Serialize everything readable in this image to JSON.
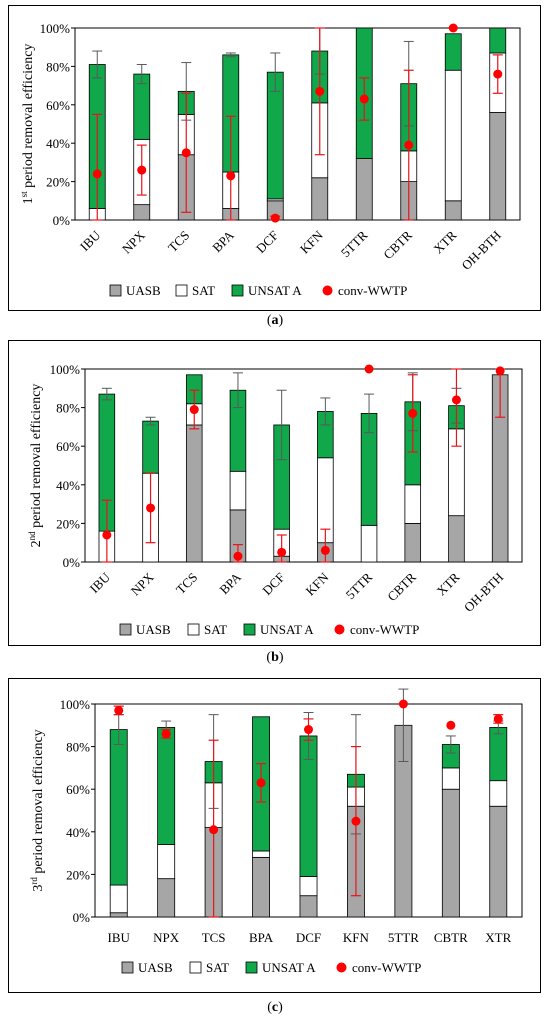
{
  "colors": {
    "uasb": "#a6a6a6",
    "sat": "#ffffff",
    "unsat": "#10a84a",
    "conv": "#ff0000",
    "error_bar": "#595959",
    "conv_error_bar": "#e8141b"
  },
  "chart_data": [
    {
      "type": "bar",
      "panel_label": "a",
      "ylabel_prefix": "1",
      "ylabel_sup": "st",
      "ylabel_suffix": " period removal efficiency",
      "ylim": [
        0,
        100
      ],
      "yticks": [
        "0%",
        "20%",
        "40%",
        "60%",
        "80%",
        "100%"
      ],
      "legend": [
        "UASB",
        "SAT",
        "UNSAT A",
        "conv-WWTP"
      ],
      "legend_position": "bottom",
      "categories": [
        "IBU",
        "NPX",
        "TCS",
        "BPA",
        "DCF",
        "KFN",
        "5TTR",
        "CBTR",
        "XTR",
        "OH-BTH"
      ],
      "series": [
        {
          "name": "UASB",
          "values": [
            0,
            8,
            34,
            6,
            10,
            22,
            32,
            20,
            10,
            56
          ]
        },
        {
          "name": "SAT",
          "values": [
            6,
            34,
            21,
            19,
            1,
            39,
            0,
            16,
            68,
            31
          ]
        },
        {
          "name": "UNSAT A",
          "values": [
            75,
            34,
            12,
            61,
            66,
            27,
            68,
            35,
            19,
            13
          ]
        }
      ],
      "stack_error": [
        7,
        5,
        15,
        1,
        10,
        12,
        0,
        22,
        0,
        0
      ],
      "conv_wwtp": [
        24,
        26,
        35,
        23,
        1,
        67,
        63,
        39,
        100,
        76
      ],
      "conv_error": [
        31,
        13,
        31,
        31,
        1,
        33,
        11,
        39,
        0,
        10
      ]
    },
    {
      "type": "bar",
      "panel_label": "b",
      "ylabel_prefix": "2",
      "ylabel_sup": "nd",
      "ylabel_suffix": " period removal efficiency",
      "ylim": [
        0,
        100
      ],
      "yticks": [
        "0%",
        "20%",
        "40%",
        "60%",
        "80%",
        "100%"
      ],
      "legend": [
        "UASB",
        "SAT",
        "UNSAT A",
        "conv-WWTP"
      ],
      "legend_position": "bottom",
      "categories": [
        "IBU",
        "NPX",
        "TCS",
        "BPA",
        "DCF",
        "KFN",
        "5TTR",
        "CBTR",
        "XTR",
        "OH-BTH"
      ],
      "series": [
        {
          "name": "UASB",
          "values": [
            0,
            0,
            71,
            27,
            3,
            10,
            0,
            20,
            24,
            97
          ]
        },
        {
          "name": "SAT",
          "values": [
            16,
            46,
            11,
            20,
            14,
            44,
            19,
            20,
            45,
            0
          ]
        },
        {
          "name": "UNSAT A",
          "values": [
            71,
            27,
            15,
            42,
            54,
            24,
            58,
            43,
            12,
            0
          ]
        }
      ],
      "stack_error": [
        3,
        2,
        0,
        9,
        18,
        7,
        10,
        15,
        9,
        0
      ],
      "conv_wwtp": [
        14,
        28,
        79,
        3,
        5,
        6,
        100,
        77,
        84,
        99
      ],
      "conv_error": [
        18,
        18,
        10,
        6,
        9,
        11,
        0,
        20,
        24,
        24
      ]
    },
    {
      "type": "bar",
      "panel_label": "c",
      "ylabel_prefix": "3",
      "ylabel_sup": "rd",
      "ylabel_suffix": " period removal efficiency",
      "ylim": [
        0,
        100
      ],
      "yticks": [
        "0%",
        "20%",
        "40%",
        "60%",
        "80%",
        "100%"
      ],
      "legend": [
        "UASB",
        "SAT",
        "UNSAT A",
        "conv-WWTP"
      ],
      "legend_position": "bottom",
      "categories": [
        "IBU",
        "NPX",
        "TCS",
        "BPA",
        "DCF",
        "KFN",
        "5TTR",
        "CBTR",
        "XTR"
      ],
      "series": [
        {
          "name": "UASB",
          "values": [
            2,
            18,
            42,
            28,
            10,
            52,
            90,
            60,
            52
          ]
        },
        {
          "name": "SAT",
          "values": [
            13,
            16,
            21,
            3,
            9,
            9,
            0,
            10,
            12
          ]
        },
        {
          "name": "UNSAT A",
          "values": [
            73,
            55,
            10,
            63,
            66,
            6,
            0,
            11,
            25
          ]
        }
      ],
      "stack_error": [
        7,
        3,
        22,
        0,
        11,
        28,
        17,
        4,
        3
      ],
      "conv_wwtp": [
        97,
        86,
        41,
        63,
        88,
        45,
        100,
        90,
        93
      ],
      "conv_error": [
        2,
        2,
        42,
        9,
        5,
        35,
        0,
        0,
        2
      ]
    }
  ]
}
